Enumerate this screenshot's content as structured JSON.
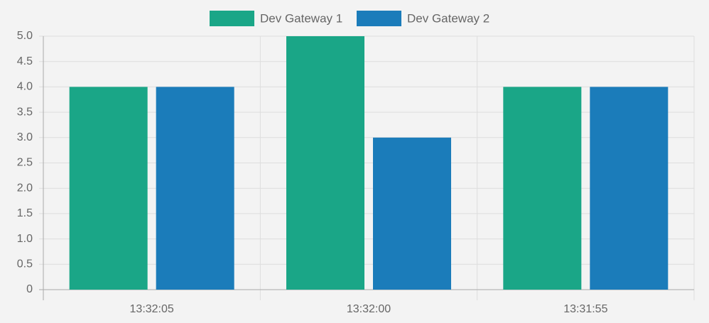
{
  "chart_data": {
    "type": "bar",
    "title": "",
    "xlabel": "",
    "ylabel": "",
    "categories": [
      "13:32:05",
      "13:32:00",
      "13:31:55"
    ],
    "series": [
      {
        "name": "Dev Gateway 1",
        "color": "#1aa687",
        "values": [
          4,
          5,
          4
        ]
      },
      {
        "name": "Dev Gateway 2",
        "color": "#1b7cba",
        "values": [
          4,
          3,
          4
        ]
      }
    ],
    "ylim": [
      0,
      5
    ],
    "y_ticks": [
      "0",
      "0.5",
      "1.0",
      "1.5",
      "2.0",
      "2.5",
      "3.0",
      "3.5",
      "4.0",
      "4.5",
      "5.0"
    ],
    "y_tick_values": [
      0,
      0.5,
      1,
      1.5,
      2,
      2.5,
      3,
      3.5,
      4,
      4.5,
      5
    ],
    "legend_position": "top-center",
    "grid": true
  }
}
